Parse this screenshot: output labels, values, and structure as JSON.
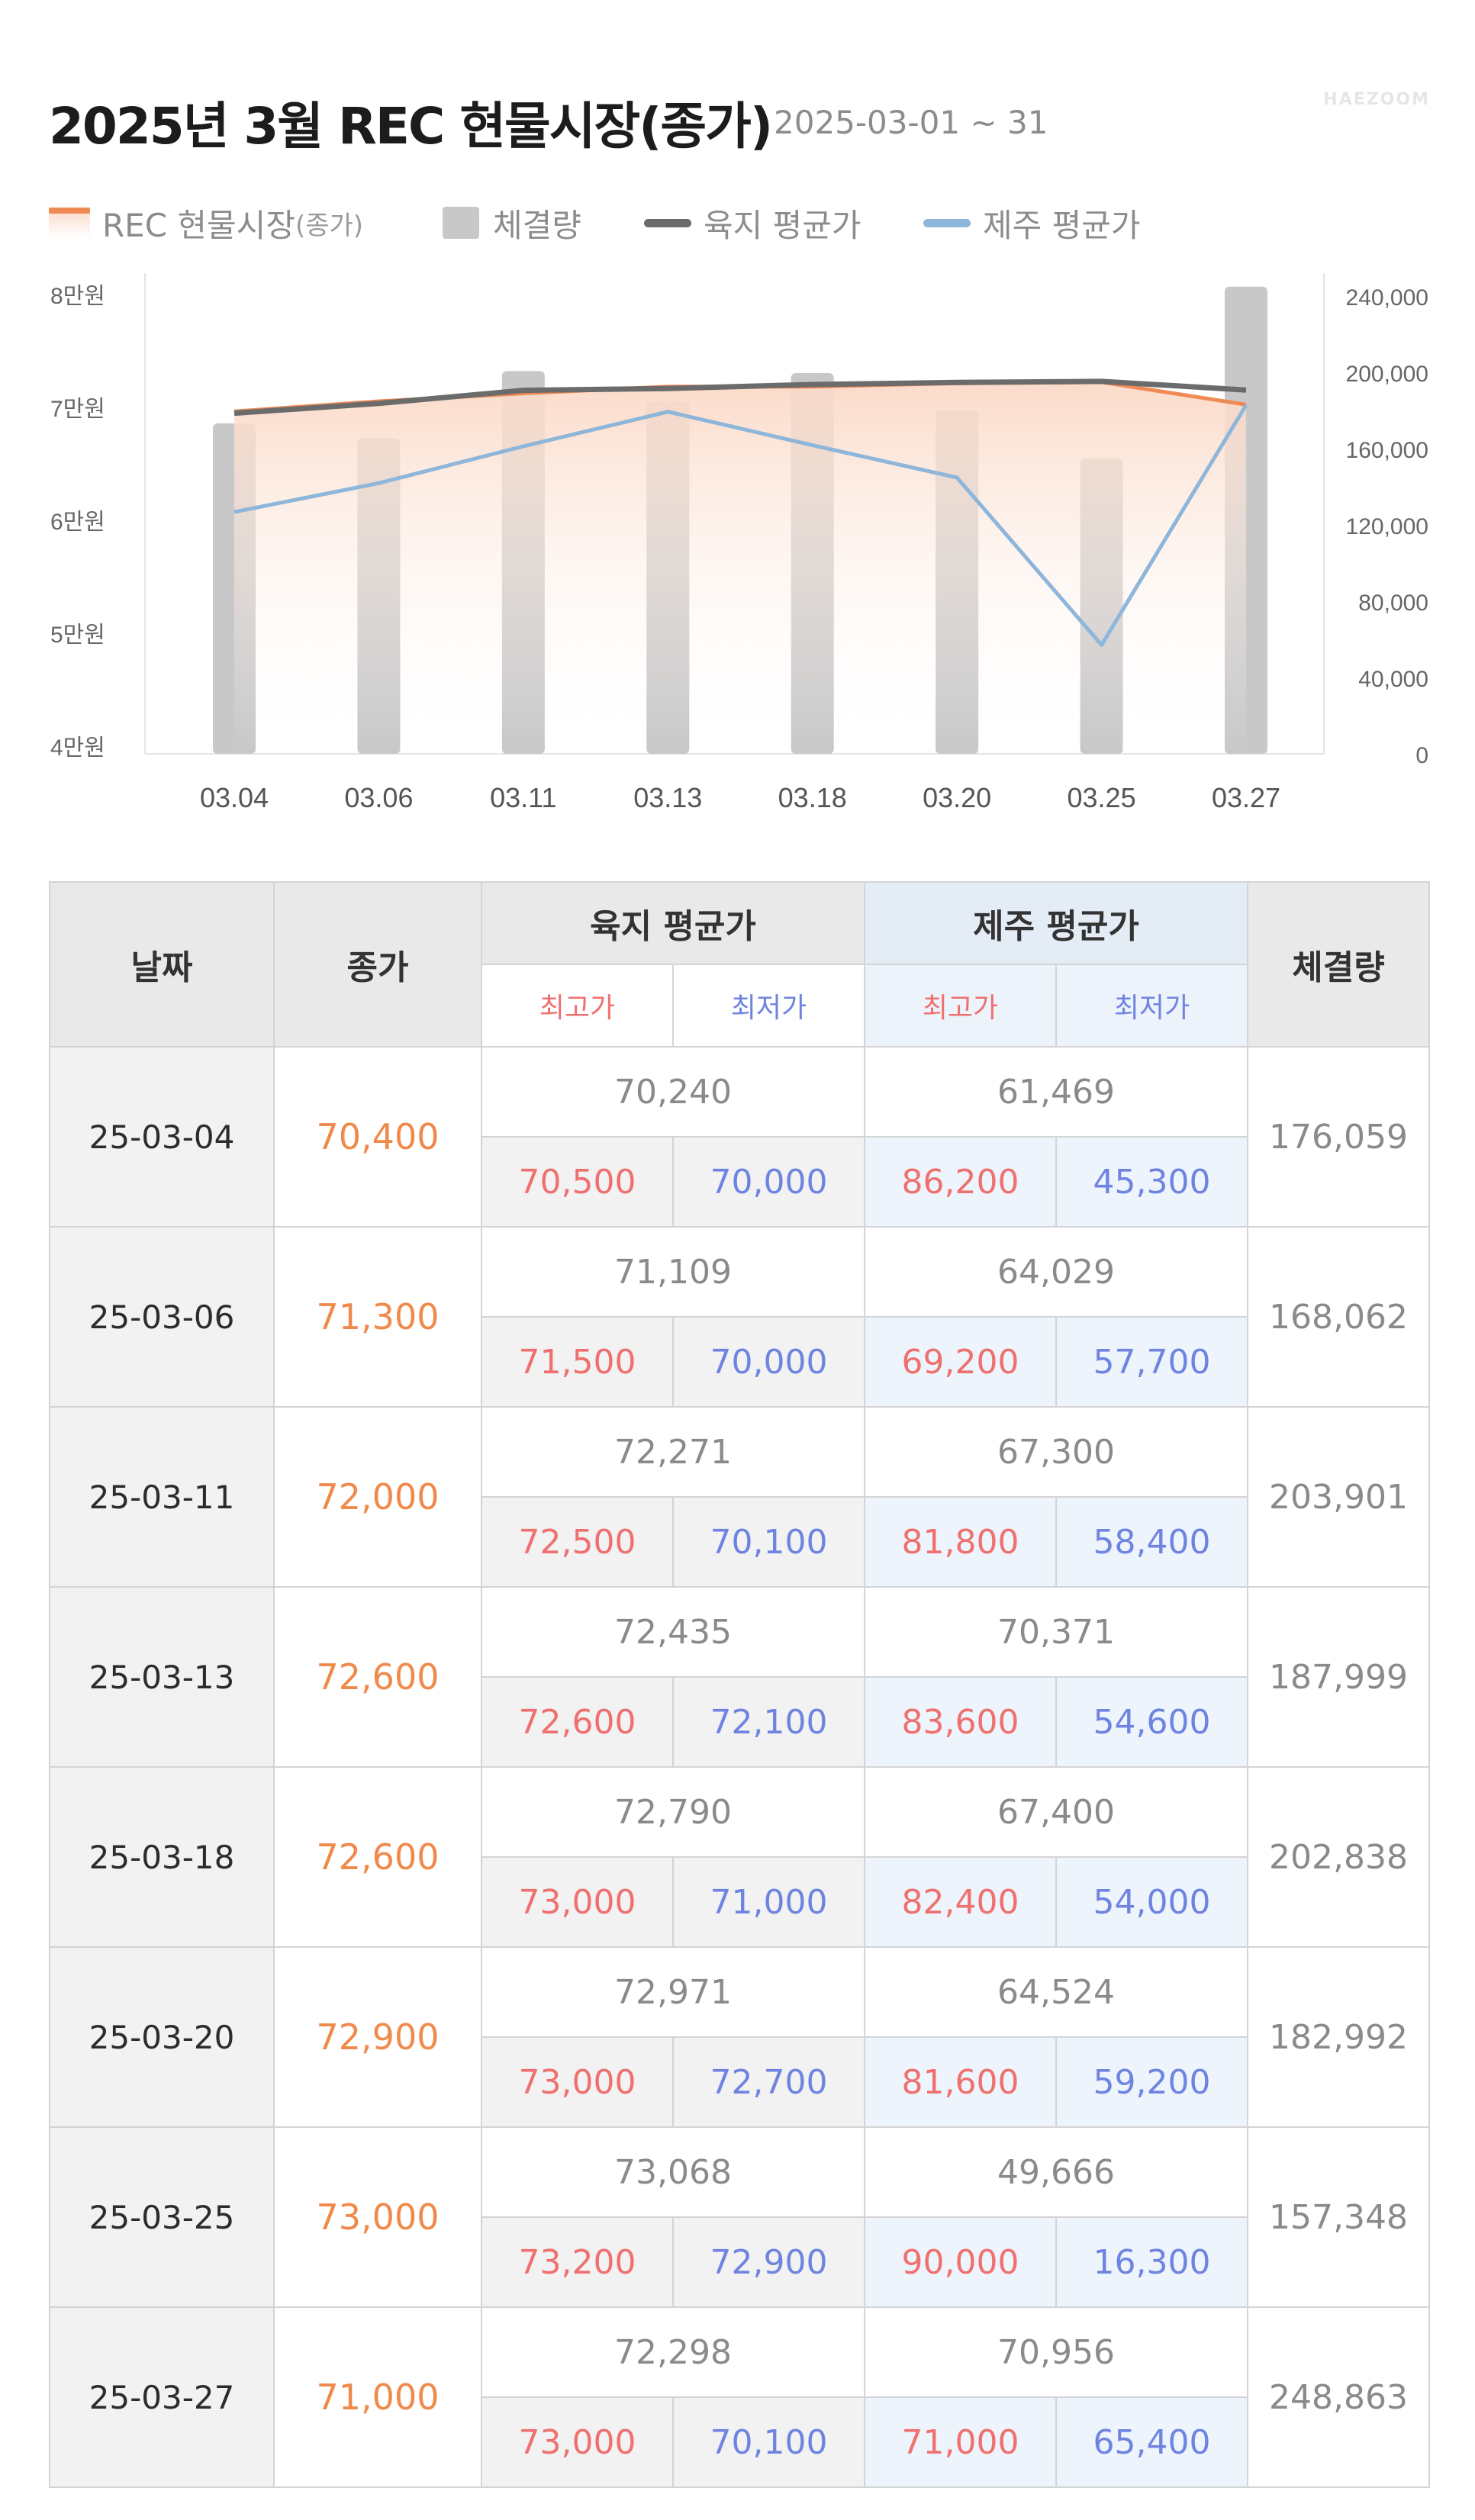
{
  "header": {
    "title": "2025년 3월 REC 현물시장(종가)",
    "subtitle": "2025-03-01 ~ 31",
    "watermark": "HAEZOOM"
  },
  "legend": {
    "rec": "REC 현물시장",
    "rec_sub": "(종가)",
    "volume": "체결량",
    "land": "육지 평균가",
    "jeju": "제주 평균가"
  },
  "colors": {
    "rec_line": "#f08a55",
    "rec_fill": "#fbd9c7",
    "volume_bar": "#c8c8c8",
    "land_line": "#6b6b6b",
    "jeju_line": "#8db6da",
    "high": "#f07070",
    "low": "#6f84e0",
    "close_text": "#f08a4b"
  },
  "chart_data": {
    "type": "bar",
    "categories": [
      "03.04",
      "03.06",
      "03.11",
      "03.13",
      "03.18",
      "03.20",
      "03.25",
      "03.27"
    ],
    "y_left": {
      "ticks": [
        "8만원",
        "7만원",
        "6만원",
        "5만원",
        "4만원"
      ],
      "range": [
        40000,
        82000
      ]
    },
    "y_right": {
      "ticks": [
        "240,000",
        "200,000",
        "160,000",
        "120,000",
        "80,000",
        "40,000",
        "0"
      ],
      "range": [
        0,
        252000
      ]
    },
    "legend_position": "top",
    "grid": false,
    "series": [
      {
        "name": "체결량",
        "type": "bar",
        "axis": "right",
        "values": [
          176059,
          168062,
          203901,
          187999,
          202838,
          182992,
          157348,
          248863
        ]
      },
      {
        "name": "REC 현물시장(종가)",
        "type": "area",
        "axis": "left",
        "values": [
          70400,
          71300,
          72000,
          72600,
          72600,
          72900,
          73000,
          71000
        ]
      },
      {
        "name": "육지 평균가",
        "type": "line",
        "axis": "left",
        "values": [
          70240,
          71109,
          72271,
          72435,
          72790,
          72971,
          73068,
          72298
        ]
      },
      {
        "name": "제주 평균가",
        "type": "line",
        "axis": "left",
        "values": [
          61469,
          64029,
          67300,
          70371,
          67400,
          64524,
          49666,
          70956
        ]
      }
    ]
  },
  "table": {
    "headers": {
      "date": "날짜",
      "close": "종가",
      "land": "육지 평균가",
      "jeju": "제주 평균가",
      "volume": "체결량",
      "high": "최고가",
      "low": "최저가"
    },
    "rows": [
      {
        "date": "25-03-04",
        "close": "70,400",
        "land_avg": "70,240",
        "land_high": "70,500",
        "land_low": "70,000",
        "jeju_avg": "61,469",
        "jeju_high": "86,200",
        "jeju_low": "45,300",
        "volume": "176,059"
      },
      {
        "date": "25-03-06",
        "close": "71,300",
        "land_avg": "71,109",
        "land_high": "71,500",
        "land_low": "70,000",
        "jeju_avg": "64,029",
        "jeju_high": "69,200",
        "jeju_low": "57,700",
        "volume": "168,062"
      },
      {
        "date": "25-03-11",
        "close": "72,000",
        "land_avg": "72,271",
        "land_high": "72,500",
        "land_low": "70,100",
        "jeju_avg": "67,300",
        "jeju_high": "81,800",
        "jeju_low": "58,400",
        "volume": "203,901"
      },
      {
        "date": "25-03-13",
        "close": "72,600",
        "land_avg": "72,435",
        "land_high": "72,600",
        "land_low": "72,100",
        "jeju_avg": "70,371",
        "jeju_high": "83,600",
        "jeju_low": "54,600",
        "volume": "187,999"
      },
      {
        "date": "25-03-18",
        "close": "72,600",
        "land_avg": "72,790",
        "land_high": "73,000",
        "land_low": "71,000",
        "jeju_avg": "67,400",
        "jeju_high": "82,400",
        "jeju_low": "54,000",
        "volume": "202,838"
      },
      {
        "date": "25-03-20",
        "close": "72,900",
        "land_avg": "72,971",
        "land_high": "73,000",
        "land_low": "72,700",
        "jeju_avg": "64,524",
        "jeju_high": "81,600",
        "jeju_low": "59,200",
        "volume": "182,992"
      },
      {
        "date": "25-03-25",
        "close": "73,000",
        "land_avg": "73,068",
        "land_high": "73,200",
        "land_low": "72,900",
        "jeju_avg": "49,666",
        "jeju_high": "90,000",
        "jeju_low": "16,300",
        "volume": "157,348"
      },
      {
        "date": "25-03-27",
        "close": "71,000",
        "land_avg": "72,298",
        "land_high": "73,000",
        "land_low": "70,100",
        "jeju_avg": "70,956",
        "jeju_high": "71,000",
        "jeju_low": "65,400",
        "volume": "248,863"
      }
    ]
  }
}
